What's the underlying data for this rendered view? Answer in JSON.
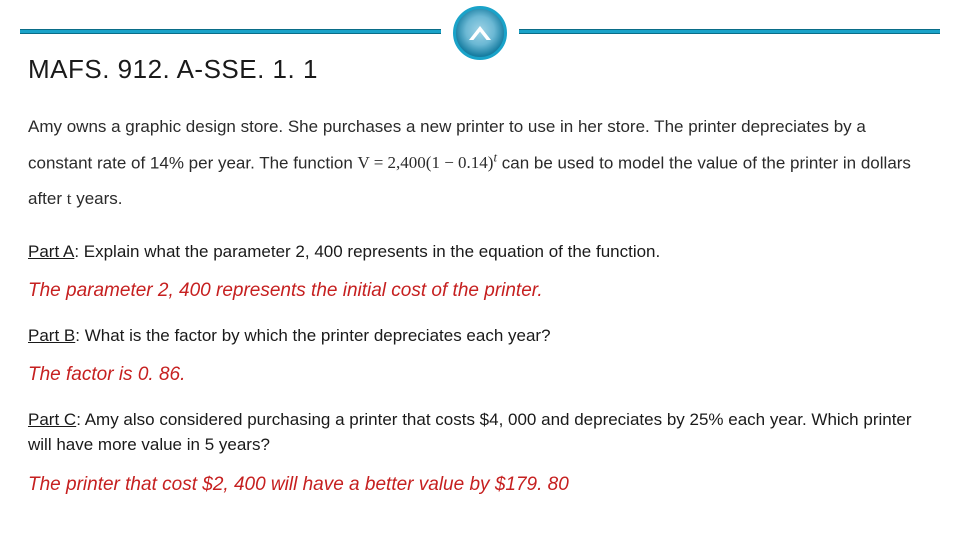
{
  "header": {
    "standard_code": "MAFS. 912. A-SSE. 1. 1"
  },
  "problem": {
    "intro_before_eq": "Amy owns a graphic design store. She purchases a new printer to use in her store. The printer depreciates by a constant rate of 14% per year. The function ",
    "equation_lhs": "V = 2,400(1 − 0.14)",
    "equation_exp": "t",
    "intro_after_eq": "  can be used to model the value of the printer in dollars after ",
    "var_t": "t",
    "intro_end": " years."
  },
  "parts": {
    "a": {
      "label": "Part A",
      "prompt": ": Explain what the parameter 2, 400 represents in the equation of the function.",
      "answer": "The parameter 2, 400 represents the initial cost of the printer."
    },
    "b": {
      "label": "Part B",
      "prompt": ": What is the factor by which the printer depreciates each year?",
      "answer": "The factor is 0. 86."
    },
    "c": {
      "label": "Part C",
      "prompt": ": Amy also considered purchasing a printer that costs $4, 000 and depreciates by 25% each year. Which printer will have more value in 5 years?",
      "answer": "The printer that cost $2, 400 will have a better value by $179. 80"
    }
  },
  "style": {
    "rule_color": "#1aa3c9",
    "answer_color": "#c62020",
    "text_color": "#1a1a1a",
    "body_font_size": 17,
    "answer_font_size": 19,
    "title_font_size": 26
  }
}
